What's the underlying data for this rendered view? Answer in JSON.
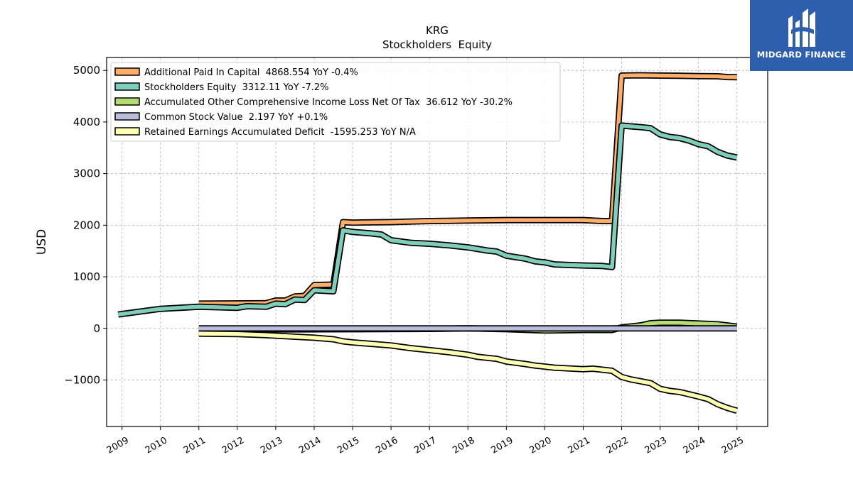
{
  "chart_data": {
    "type": "line",
    "title": "KRG",
    "subtitle": "Stockholders  Equity",
    "ylabel": "USD",
    "xlabel": "",
    "xlim": [
      2008.6,
      2025.8
    ],
    "ylim": [
      -1900,
      5250
    ],
    "x_ticks": [
      "2009",
      "2010",
      "2011",
      "2012",
      "2013",
      "2014",
      "2015",
      "2016",
      "2017",
      "2018",
      "2019",
      "2020",
      "2021",
      "2022",
      "2023",
      "2024",
      "2025"
    ],
    "y_ticks": [
      -1000,
      0,
      1000,
      2000,
      3000,
      4000,
      5000
    ],
    "y_tick_labels": [
      "−1000",
      "0",
      "1000",
      "2000",
      "3000",
      "4000",
      "5000"
    ],
    "grid": true,
    "legend_position": "top-left",
    "series": [
      {
        "name": "Additional Paid In Capital  4868.554 YoY -0.4%",
        "color": "#fdae6b",
        "points": [
          [
            2011.0,
            480
          ],
          [
            2012.25,
            485
          ],
          [
            2012.75,
            490
          ],
          [
            2013.0,
            540
          ],
          [
            2013.25,
            540
          ],
          [
            2013.5,
            620
          ],
          [
            2013.75,
            630
          ],
          [
            2014.0,
            840
          ],
          [
            2014.5,
            850
          ],
          [
            2014.75,
            2060
          ],
          [
            2015.0,
            2050
          ],
          [
            2016.0,
            2060
          ],
          [
            2016.5,
            2070
          ],
          [
            2017.0,
            2080
          ],
          [
            2018.0,
            2090
          ],
          [
            2019.0,
            2100
          ],
          [
            2020.0,
            2100
          ],
          [
            2021.0,
            2100
          ],
          [
            2021.5,
            2080
          ],
          [
            2021.75,
            2080
          ],
          [
            2022.0,
            4900
          ],
          [
            2022.5,
            4905
          ],
          [
            2023.0,
            4900
          ],
          [
            2023.5,
            4895
          ],
          [
            2024.0,
            4890
          ],
          [
            2024.5,
            4885
          ],
          [
            2024.75,
            4870
          ],
          [
            2025.0,
            4868.554
          ]
        ]
      },
      {
        "name": "Stockholders Equity  3312.11 YoY -7.2%",
        "color": "#7fcdbb",
        "points": [
          [
            2008.9,
            270
          ],
          [
            2009.5,
            330
          ],
          [
            2010.0,
            380
          ],
          [
            2011.0,
            420
          ],
          [
            2012.0,
            400
          ],
          [
            2012.25,
            430
          ],
          [
            2012.75,
            420
          ],
          [
            2013.0,
            480
          ],
          [
            2013.25,
            470
          ],
          [
            2013.5,
            560
          ],
          [
            2013.75,
            550
          ],
          [
            2014.0,
            740
          ],
          [
            2014.5,
            720
          ],
          [
            2014.75,
            1900
          ],
          [
            2015.0,
            1870
          ],
          [
            2015.5,
            1840
          ],
          [
            2015.75,
            1820
          ],
          [
            2016.0,
            1710
          ],
          [
            2016.5,
            1660
          ],
          [
            2017.0,
            1640
          ],
          [
            2017.5,
            1610
          ],
          [
            2018.0,
            1570
          ],
          [
            2018.5,
            1510
          ],
          [
            2018.75,
            1490
          ],
          [
            2019.0,
            1410
          ],
          [
            2019.5,
            1350
          ],
          [
            2019.75,
            1300
          ],
          [
            2020.0,
            1280
          ],
          [
            2020.25,
            1240
          ],
          [
            2021.0,
            1220
          ],
          [
            2021.5,
            1210
          ],
          [
            2021.75,
            1190
          ],
          [
            2022.0,
            3930
          ],
          [
            2022.5,
            3900
          ],
          [
            2022.75,
            3880
          ],
          [
            2023.0,
            3760
          ],
          [
            2023.25,
            3710
          ],
          [
            2023.5,
            3690
          ],
          [
            2023.75,
            3640
          ],
          [
            2024.0,
            3570
          ],
          [
            2024.25,
            3530
          ],
          [
            2024.5,
            3420
          ],
          [
            2024.75,
            3350
          ],
          [
            2025.0,
            3312.11
          ]
        ]
      },
      {
        "name": "Accumulated Other Comprehensive Income Loss Net Of Tax  36.612 YoY -30.2%",
        "color": "#b5dc74",
        "points": [
          [
            2011.0,
            -20
          ],
          [
            2013.0,
            -20
          ],
          [
            2015.0,
            -15
          ],
          [
            2017.0,
            -10
          ],
          [
            2018.0,
            0
          ],
          [
            2019.0,
            -15
          ],
          [
            2020.0,
            -40
          ],
          [
            2021.0,
            -30
          ],
          [
            2021.75,
            -30
          ],
          [
            2022.0,
            20
          ],
          [
            2022.5,
            60
          ],
          [
            2022.75,
            100
          ],
          [
            2023.0,
            110
          ],
          [
            2023.5,
            110
          ],
          [
            2024.0,
            95
          ],
          [
            2024.5,
            80
          ],
          [
            2025.0,
            36.612
          ]
        ]
      },
      {
        "name": "Common Stock Value  2.197 YoY +0.1%",
        "color": "#bcbddc",
        "points": [
          [
            2011.0,
            0
          ],
          [
            2025.0,
            2.197
          ]
        ]
      },
      {
        "name": "Retained Earnings Accumulated Deficit  -1595.253 YoY N/A",
        "color": "#ffffb3",
        "points": [
          [
            2011.0,
            -100
          ],
          [
            2012.0,
            -110
          ],
          [
            2012.75,
            -130
          ],
          [
            2013.0,
            -140
          ],
          [
            2013.25,
            -150
          ],
          [
            2013.5,
            -160
          ],
          [
            2014.0,
            -180
          ],
          [
            2014.5,
            -210
          ],
          [
            2014.75,
            -250
          ],
          [
            2015.0,
            -270
          ],
          [
            2015.5,
            -300
          ],
          [
            2016.0,
            -330
          ],
          [
            2016.5,
            -380
          ],
          [
            2017.0,
            -420
          ],
          [
            2017.5,
            -460
          ],
          [
            2018.0,
            -510
          ],
          [
            2018.25,
            -550
          ],
          [
            2018.75,
            -590
          ],
          [
            2019.0,
            -640
          ],
          [
            2019.5,
            -690
          ],
          [
            2019.75,
            -720
          ],
          [
            2020.0,
            -740
          ],
          [
            2020.25,
            -760
          ],
          [
            2021.0,
            -790
          ],
          [
            2021.25,
            -780
          ],
          [
            2021.75,
            -820
          ],
          [
            2022.0,
            -940
          ],
          [
            2022.25,
            -990
          ],
          [
            2022.75,
            -1060
          ],
          [
            2023.0,
            -1170
          ],
          [
            2023.25,
            -1210
          ],
          [
            2023.5,
            -1230
          ],
          [
            2024.0,
            -1320
          ],
          [
            2024.25,
            -1370
          ],
          [
            2024.5,
            -1470
          ],
          [
            2024.75,
            -1540
          ],
          [
            2025.0,
            -1595.253
          ]
        ]
      }
    ]
  },
  "logo": {
    "text": "MIDGARD FINANCE",
    "icon": "midgard-logo-icon",
    "background": "#2d5fae"
  }
}
